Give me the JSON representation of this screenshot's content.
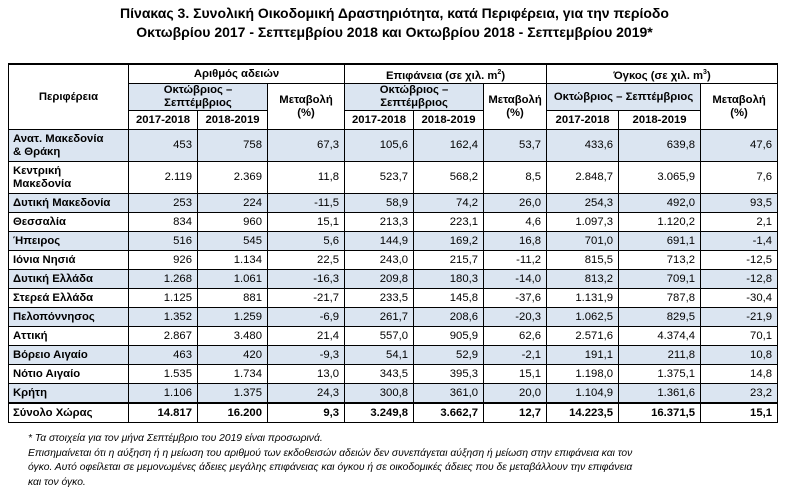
{
  "title": {
    "line1": "Πίνακας 3. Συνολική Οικοδομική Δραστηριότητα, κατά Περιφέρεια, για την περίοδο",
    "line2": "Οκτωβρίου 2017 -  Σεπτεμβρίου 2018 και Οκτωβρίου 2018 - Σεπτεμβρίου 2019*"
  },
  "header": {
    "region": "Περιφέρεια",
    "permits": "Αριθμός αδειών",
    "area": "Επιφάνεια (σε χιλ. m",
    "area_sup": "2",
    "volume": "Όγκος (σε χιλ. m",
    "volume_sup": "3",
    "period": "Οκτώβριος – Σεπτέμβριος",
    "change": "Μεταβολή",
    "pct": "(%)",
    "y1": "2017-2018",
    "y2": "2018-2019"
  },
  "rows": [
    {
      "region": "Ανατ. Μακεδονία & Θράκη",
      "p1": "453",
      "p2": "758",
      "pc": "67,3",
      "a1": "105,6",
      "a2": "162,4",
      "ac": "53,7",
      "v1": "433,6",
      "v2": "639,8",
      "vc": "47,6"
    },
    {
      "region": "Κεντρική Μακεδονία",
      "p1": "2.119",
      "p2": "2.369",
      "pc": "11,8",
      "a1": "523,7",
      "a2": "568,2",
      "ac": "8,5",
      "v1": "2.848,7",
      "v2": "3.065,9",
      "vc": "7,6"
    },
    {
      "region": "Δυτική Μακεδονία",
      "p1": "253",
      "p2": "224",
      "pc": "-11,5",
      "a1": "58,9",
      "a2": "74,2",
      "ac": "26,0",
      "v1": "254,3",
      "v2": "492,0",
      "vc": "93,5"
    },
    {
      "region": "Θεσσαλία",
      "p1": "834",
      "p2": "960",
      "pc": "15,1",
      "a1": "213,3",
      "a2": "223,1",
      "ac": "4,6",
      "v1": "1.097,3",
      "v2": "1.120,2",
      "vc": "2,1"
    },
    {
      "region": "Ήπειρος",
      "p1": "516",
      "p2": "545",
      "pc": "5,6",
      "a1": "144,9",
      "a2": "169,2",
      "ac": "16,8",
      "v1": "701,0",
      "v2": "691,1",
      "vc": "-1,4"
    },
    {
      "region": "Ιόνια Νησιά",
      "p1": "926",
      "p2": "1.134",
      "pc": "22,5",
      "a1": "243,0",
      "a2": "215,7",
      "ac": "-11,2",
      "v1": "815,5",
      "v2": "713,2",
      "vc": "-12,5"
    },
    {
      "region": "Δυτική Ελλάδα",
      "p1": "1.268",
      "p2": "1.061",
      "pc": "-16,3",
      "a1": "209,8",
      "a2": "180,3",
      "ac": "-14,0",
      "v1": "813,2",
      "v2": "709,1",
      "vc": "-12,8"
    },
    {
      "region": "Στερεά Ελλάδα",
      "p1": "1.125",
      "p2": "881",
      "pc": "-21,7",
      "a1": "233,5",
      "a2": "145,8",
      "ac": "-37,6",
      "v1": "1.131,9",
      "v2": "787,8",
      "vc": "-30,4"
    },
    {
      "region": "Πελοπόννησος",
      "p1": "1.352",
      "p2": "1.259",
      "pc": "-6,9",
      "a1": "261,7",
      "a2": "208,6",
      "ac": "-20,3",
      "v1": "1.062,5",
      "v2": "829,5",
      "vc": "-21,9"
    },
    {
      "region": "Αττική",
      "p1": "2.867",
      "p2": "3.480",
      "pc": "21,4",
      "a1": "557,0",
      "a2": "905,9",
      "ac": "62,6",
      "v1": "2.571,6",
      "v2": "4.374,4",
      "vc": "70,1"
    },
    {
      "region": "Βόρειο Αιγαίο",
      "p1": "463",
      "p2": "420",
      "pc": "-9,3",
      "a1": "54,1",
      "a2": "52,9",
      "ac": "-2,1",
      "v1": "191,1",
      "v2": "211,8",
      "vc": "10,8"
    },
    {
      "region": "Νότιο Αιγαίο",
      "p1": "1.535",
      "p2": "1.734",
      "pc": "13,0",
      "a1": "343,5",
      "a2": "395,3",
      "ac": "15,1",
      "v1": "1.198,0",
      "v2": "1.375,1",
      "vc": "14,8"
    },
    {
      "region": "Κρήτη",
      "p1": "1.106",
      "p2": "1.375",
      "pc": "24,3",
      "a1": "300,8",
      "a2": "361,0",
      "ac": "20,0",
      "v1": "1.104,9",
      "v2": "1.361,6",
      "vc": "23,2"
    }
  ],
  "total": {
    "region": "Σύνολο Χώρας",
    "p1": "14.817",
    "p2": "16.200",
    "pc": "9,3",
    "a1": "3.249,8",
    "a2": "3.662,7",
    "ac": "12,7",
    "v1": "14.223,5",
    "v2": "16.371,5",
    "vc": "15,1"
  },
  "footnote": {
    "line1": "* Τα στοιχεία για τον μήνα  Σεπτέμβριο του 2019 είναι προσωρινά.",
    "line2": "Επισημαίνεται ότι η αύξηση ή η μείωση του αριθμού των εκδοθεισών αδειών δεν συνεπάγεται αύξηση ή  μείωση στην επιφάνεια και τον",
    "line3": "όγκο. Αυτό οφείλεται σε μεμονωμένες άδειες μεγάλης επιφάνειας και όγκου ή σε οικοδομικές άδειες που δε μεταβάλλουν την επιφάνεια",
    "line4": "και τον όγκο."
  }
}
